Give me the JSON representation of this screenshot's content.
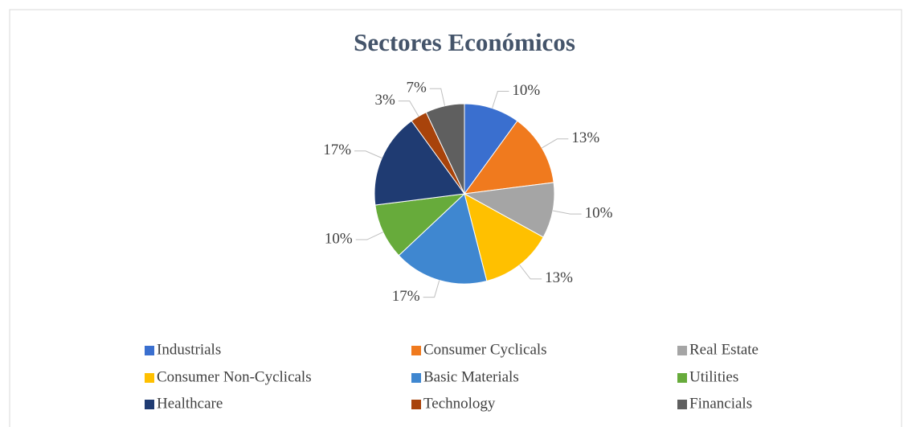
{
  "chart_data": {
    "type": "pie",
    "title": "Sectores Económicos",
    "categories": [
      "Industrials",
      "Consumer Cyclicals",
      "Real Estate",
      "Consumer Non-Cyclicals",
      "Basic Materials",
      "Utilities",
      "Healthcare",
      "Technology",
      "Financials"
    ],
    "values": [
      10,
      13,
      10,
      13,
      17,
      10,
      17,
      3,
      7
    ],
    "value_labels": [
      "10%",
      "13%",
      "10%",
      "13%",
      "17%",
      "10%",
      "17%",
      "3%",
      "7%"
    ],
    "colors": [
      "#3a6fcf",
      "#f07a1e",
      "#a5a5a5",
      "#ffc000",
      "#3f87d0",
      "#67ab3b",
      "#1f3b72",
      "#a8430b",
      "#5f5f5f"
    ],
    "legend": "bottom"
  }
}
